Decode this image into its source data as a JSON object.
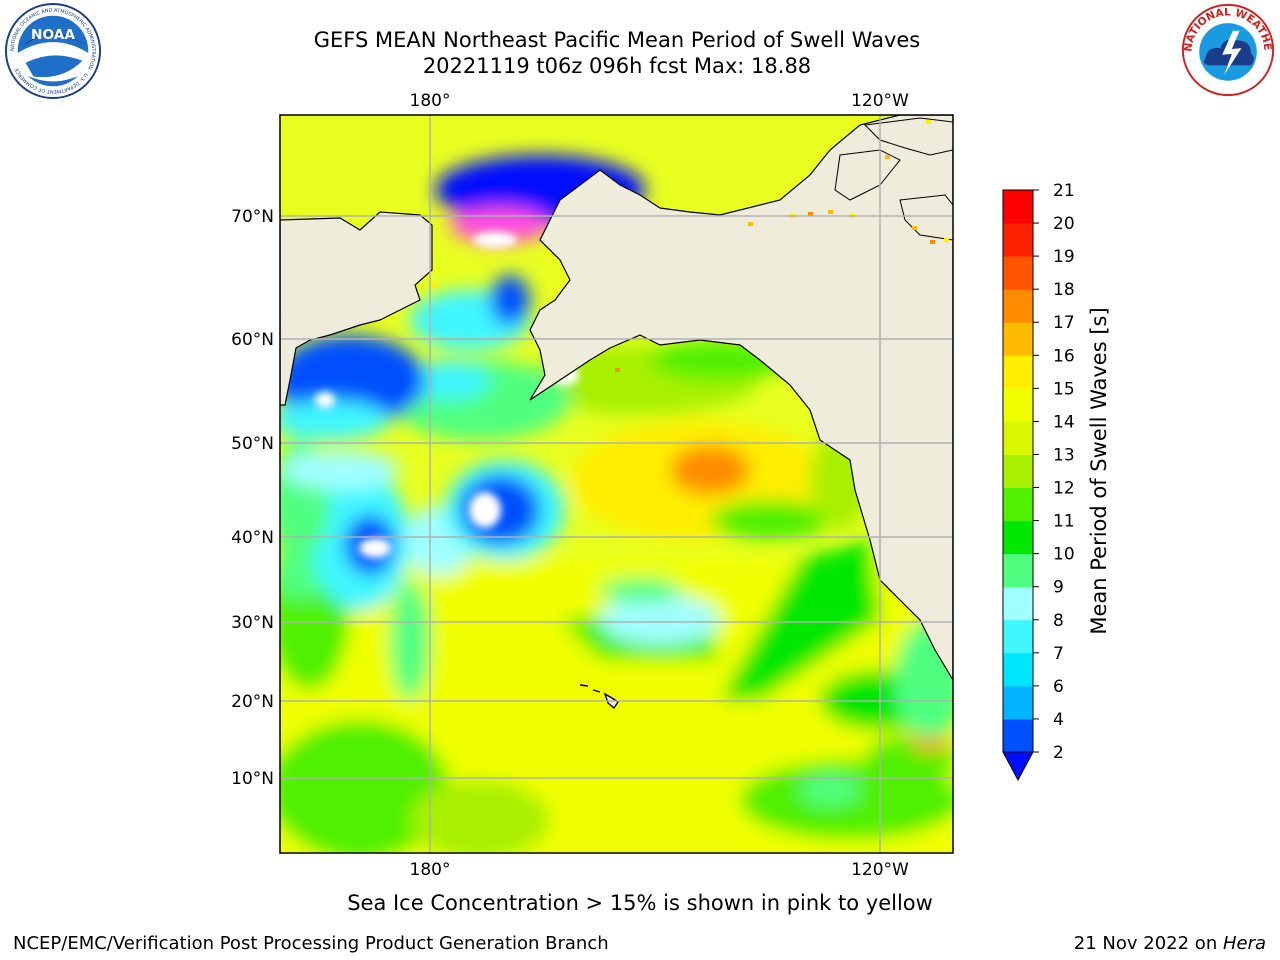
{
  "title": {
    "line1": "GEFS MEAN Northeast Pacific Mean Period of Swell Waves",
    "line2": "20221119 t06z 096h fcst   Max: 18.88"
  },
  "logos": {
    "noaa_text": "NOAA",
    "noaa_ring": "NATIONAL OCEANIC AND ATMOSPHERIC ADMINISTRATION · U.S. DEPARTMENT OF COMMERCE",
    "nws_ring": "NATIONAL WEATHER SERVICE"
  },
  "map": {
    "lon_labels": [
      "180°",
      "120°W"
    ],
    "lat_labels": [
      "70°N",
      "60°N",
      "50°N",
      "40°N",
      "30°N",
      "20°N",
      "10°N"
    ],
    "land_color": "#efecdc",
    "grid_color": "#b0b0b0",
    "max_value": 18.88
  },
  "colorbar": {
    "label": "Mean Period of Swell Waves [s]",
    "ticks": [
      "2",
      "4",
      "6",
      "7",
      "8",
      "9",
      "10",
      "11",
      "12",
      "13",
      "14",
      "15",
      "16",
      "17",
      "18",
      "19",
      "20",
      "21"
    ],
    "colors": [
      "#0050ff",
      "#00b4ff",
      "#00e6ff",
      "#40f6ff",
      "#a0ffff",
      "#50ff80",
      "#00e800",
      "#50f000",
      "#a8f000",
      "#d8f800",
      "#f0ff00",
      "#ffee00",
      "#ffbb00",
      "#ff8c00",
      "#ff5500",
      "#ff2200",
      "#ff0000"
    ],
    "extend_color": "#0010ff"
  },
  "caption": "Sea Ice Concentration > 15% is shown in pink to yellow",
  "footer": {
    "left": "NCEP/EMC/Verification Post Processing Product Generation Branch",
    "right_prefix": "21 Nov 2022 on ",
    "right_host": "Hera"
  }
}
